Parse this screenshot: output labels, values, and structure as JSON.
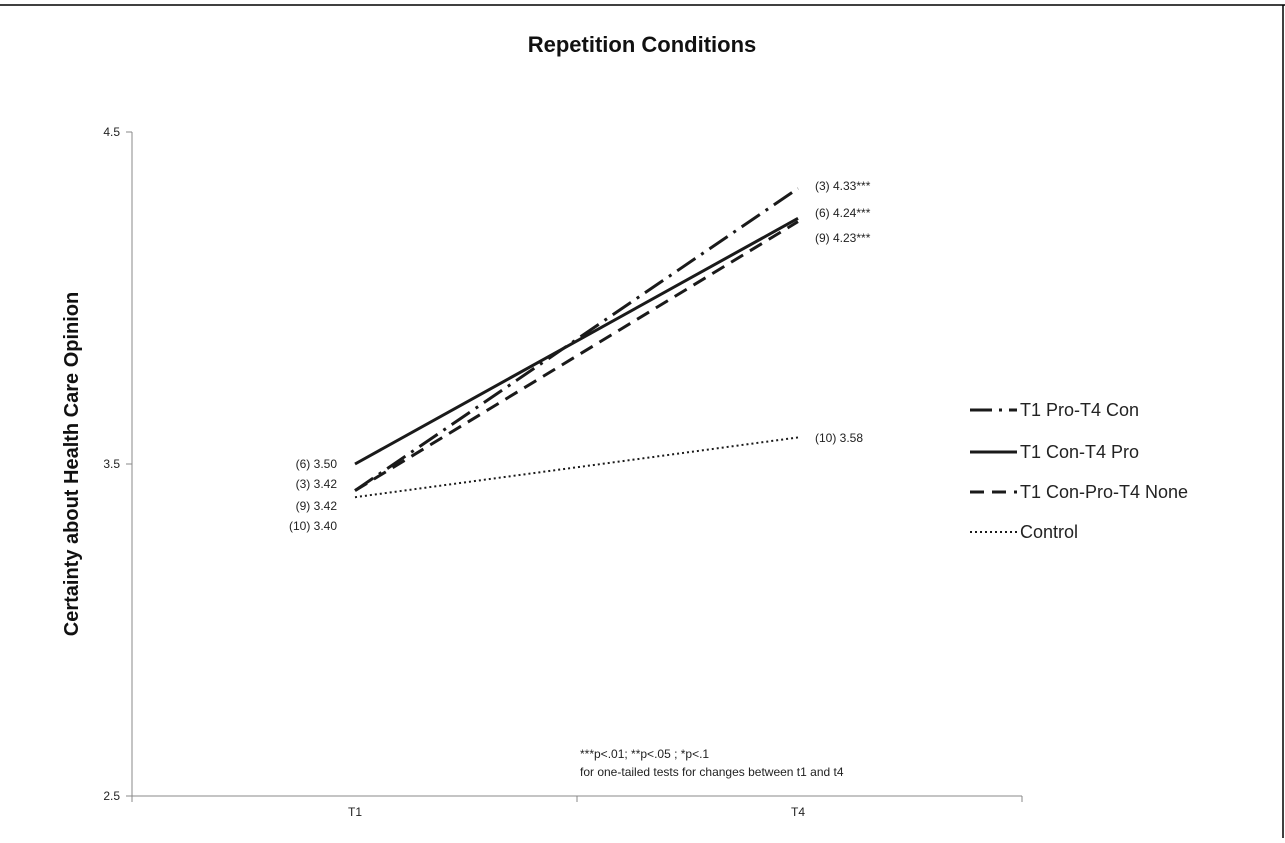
{
  "chart_data": {
    "type": "line",
    "title": "Repetition Conditions",
    "xlabel": "",
    "ylabel": "Certainty  about Health Care Opinion",
    "categories": [
      "T1",
      "T4"
    ],
    "ylim": [
      2.5,
      4.5
    ],
    "yticks": [
      "2.5",
      "3.5",
      "4.5"
    ],
    "grid": false,
    "legend_position": "right",
    "series": [
      {
        "name": "T1 Pro-T4 Con",
        "style": "dash-dot",
        "values": [
          3.42,
          4.33
        ],
        "labels": [
          "(3) 3.42",
          "(3) 4.33***"
        ]
      },
      {
        "name": "T1 Con-T4 Pro",
        "style": "solid",
        "values": [
          3.5,
          4.24
        ],
        "labels": [
          "(6) 3.50",
          "(6) 4.24***"
        ]
      },
      {
        "name": "T1 Con-Pro-T4 None",
        "style": "dashed",
        "values": [
          3.42,
          4.23
        ],
        "labels": [
          "(9) 3.42",
          "(9) 4.23***"
        ]
      },
      {
        "name": "Control",
        "style": "dotted",
        "values": [
          3.4,
          3.58
        ],
        "labels": [
          "(10) 3.40",
          "(10) 3.58"
        ]
      }
    ],
    "annotations": [
      "***p<.01; **p<.05 ; *p<.1",
      "for one-tailed tests for changes between t1 and t4"
    ]
  }
}
